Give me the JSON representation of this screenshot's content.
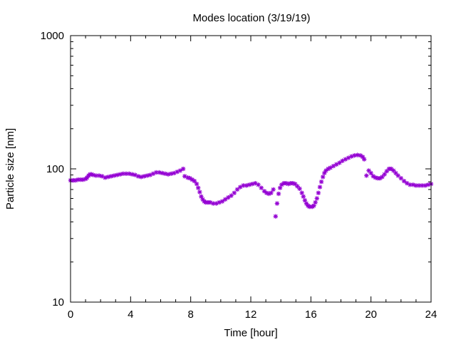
{
  "chart_data": {
    "type": "scatter",
    "title": "Modes location (3/19/19)",
    "xlabel": "Time [hour]",
    "ylabel": "Particle size [nm]",
    "xlim": [
      0,
      24
    ],
    "ylim": [
      10,
      1000
    ],
    "yscale": "log",
    "grid": false,
    "legend": "none",
    "x_ticks": [
      0,
      4,
      8,
      12,
      16,
      20,
      24
    ],
    "x_tick_labels": [
      "0",
      "4",
      "8",
      "12",
      "16",
      "20",
      "24"
    ],
    "y_ticks": [
      10,
      100,
      1000
    ],
    "y_tick_labels": [
      "10",
      "100",
      "1000"
    ],
    "marker": "asterisk",
    "color": "#9400d3",
    "series": [
      {
        "x": [
          0.0,
          0.17,
          0.33,
          0.5,
          0.67,
          0.83,
          1.0,
          1.1,
          1.2,
          1.3,
          1.4,
          1.5,
          1.7,
          1.9,
          2.1,
          2.3,
          2.5,
          2.7,
          2.9,
          3.1,
          3.3,
          3.5,
          3.7,
          3.9,
          4.1,
          4.3,
          4.5,
          4.7,
          4.9,
          5.1,
          5.3,
          5.5,
          5.7,
          5.9,
          6.1,
          6.3,
          6.5,
          6.7,
          6.9,
          7.1,
          7.3,
          7.5,
          7.6,
          7.8,
          7.95,
          8.1,
          8.25,
          8.4,
          8.5,
          8.6,
          8.7,
          8.8,
          8.9,
          9.0,
          9.15,
          9.3,
          9.5,
          9.7,
          9.9,
          10.1,
          10.3,
          10.5,
          10.7,
          10.9,
          11.1,
          11.3,
          11.5,
          11.7,
          11.9,
          12.1,
          12.3,
          12.5,
          12.7,
          12.9,
          13.05,
          13.2,
          13.35,
          13.5,
          13.65,
          13.75,
          13.85,
          13.95,
          14.05,
          14.2,
          14.35,
          14.5,
          14.65,
          14.8,
          14.95,
          15.1,
          15.25,
          15.4,
          15.5,
          15.6,
          15.7,
          15.8,
          15.9,
          16.0,
          16.1,
          16.2,
          16.3,
          16.4,
          16.5,
          16.6,
          16.7,
          16.8,
          16.9,
          17.0,
          17.15,
          17.3,
          17.5,
          17.7,
          17.9,
          18.1,
          18.3,
          18.5,
          18.7,
          18.9,
          19.1,
          19.3,
          19.45,
          19.55,
          19.7,
          19.85,
          20.0,
          20.15,
          20.3,
          20.45,
          20.6,
          20.75,
          20.9,
          21.05,
          21.2,
          21.35,
          21.5,
          21.65,
          21.8,
          22.0,
          22.2,
          22.4,
          22.6,
          22.8,
          23.0,
          23.2,
          23.4,
          23.6,
          23.8,
          24.0
        ],
        "y": [
          82,
          82,
          82,
          83,
          83,
          83,
          84,
          86,
          89,
          91,
          91,
          90,
          89,
          89,
          88,
          86,
          87,
          88,
          89,
          90,
          91,
          92,
          92,
          92,
          91,
          90,
          88,
          87,
          88,
          89,
          90,
          92,
          94,
          94,
          93,
          92,
          91,
          92,
          93,
          95,
          97,
          100,
          88,
          86,
          85,
          83,
          81,
          77,
          72,
          67,
          62,
          59,
          57,
          56,
          56,
          56,
          55,
          55,
          56,
          57,
          59,
          61,
          63,
          66,
          70,
          73,
          75,
          75,
          76,
          77,
          78,
          76,
          72,
          68,
          66,
          65,
          66,
          70,
          44,
          55,
          65,
          72,
          76,
          78,
          78,
          77,
          78,
          78,
          77,
          74,
          71,
          66,
          62,
          58,
          55,
          53,
          52,
          52,
          52,
          53,
          56,
          60,
          66,
          73,
          80,
          87,
          93,
          97,
          100,
          102,
          105,
          108,
          111,
          115,
          118,
          121,
          124,
          126,
          127,
          126,
          123,
          118,
          89,
          97,
          93,
          88,
          86,
          85,
          85,
          87,
          91,
          96,
          100,
          100,
          97,
          93,
          89,
          85,
          81,
          78,
          76,
          76,
          75,
          75,
          75,
          75,
          76,
          77
        ]
      }
    ]
  }
}
